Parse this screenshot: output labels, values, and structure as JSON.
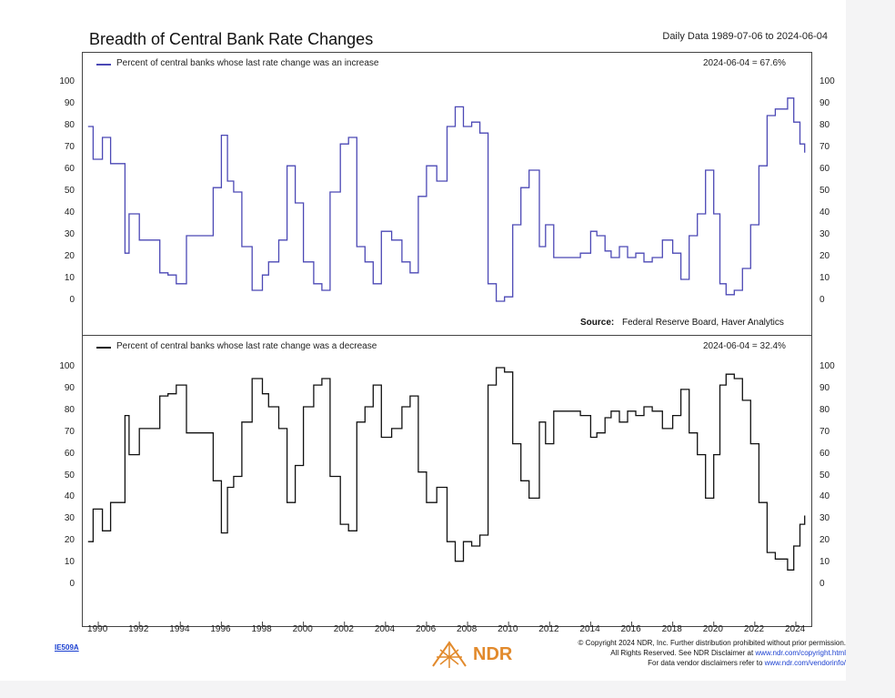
{
  "title": "Breadth of Central Bank Rate Changes",
  "date_range": "Daily Data 1989-07-06 to 2024-06-04",
  "source": {
    "label": "Source:",
    "text": "Federal Reserve Board, Haver Analytics"
  },
  "chart_code": "IE509A",
  "logo_text": "NDR",
  "footer": {
    "line1": "© Copyright 2024 NDR, Inc. Further distribution prohibited without prior permission.",
    "line2_pre": "All Rights Reserved. See NDR Disclaimer at ",
    "line2_link": "www.ndr.com/copyright.html",
    "line3_pre": "For data vendor disclaimers refer to ",
    "line3_link": "www.ndr.com/vendorinfo/"
  },
  "colors": {
    "increase": "#4b48b5",
    "decrease": "#111111",
    "logo": "#e28a2c"
  },
  "chart_data": [
    {
      "type": "line",
      "series": [
        {
          "name": "Percent of central banks whose last rate change was an increase",
          "x": [
            1989.5,
            1989.75,
            1990.2,
            1990.6,
            1991.0,
            1991.3,
            1991.5,
            1992.0,
            1992.5,
            1993.0,
            1993.4,
            1993.8,
            1994.3,
            1994.8,
            1995.2,
            1995.6,
            1996.0,
            1996.3,
            1996.6,
            1997.0,
            1997.5,
            1998.0,
            1998.3,
            1998.8,
            1999.2,
            1999.6,
            2000.0,
            2000.5,
            2000.9,
            2001.3,
            2001.8,
            2002.2,
            2002.6,
            2003.0,
            2003.4,
            2003.8,
            2004.3,
            2004.8,
            2005.2,
            2005.6,
            2006.0,
            2006.5,
            2007.0,
            2007.4,
            2007.8,
            2008.2,
            2008.6,
            2009.0,
            2009.4,
            2009.8,
            2010.2,
            2010.6,
            2011.0,
            2011.5,
            2011.8,
            2012.2,
            2012.6,
            2013.0,
            2013.5,
            2014.0,
            2014.3,
            2014.7,
            2015.0,
            2015.4,
            2015.8,
            2016.2,
            2016.6,
            2017.0,
            2017.5,
            2018.0,
            2018.4,
            2018.8,
            2019.2,
            2019.6,
            2020.0,
            2020.3,
            2020.6,
            2021.0,
            2021.4,
            2021.8,
            2022.2,
            2022.6,
            2023.0,
            2023.3,
            2023.6,
            2023.9,
            2024.2,
            2024.43
          ],
          "values": [
            80,
            65,
            75,
            63,
            63,
            22,
            40,
            28,
            28,
            13,
            12,
            8,
            30,
            30,
            30,
            52,
            76,
            55,
            50,
            25,
            5,
            12,
            18,
            28,
            62,
            45,
            18,
            8,
            5,
            50,
            72,
            75,
            25,
            18,
            8,
            32,
            28,
            18,
            13,
            48,
            62,
            55,
            80,
            89,
            80,
            82,
            77,
            8,
            0,
            2,
            35,
            52,
            60,
            25,
            35,
            20,
            20,
            20,
            22,
            32,
            30,
            23,
            20,
            25,
            20,
            22,
            18,
            20,
            28,
            22,
            10,
            30,
            40,
            60,
            40,
            8,
            3,
            5,
            15,
            35,
            62,
            85,
            88,
            88,
            93,
            82,
            72,
            68
          ]
        }
      ],
      "ylim": [
        -10,
        100
      ],
      "yticks": [
        0,
        10,
        20,
        30,
        40,
        50,
        60,
        70,
        80,
        90,
        100
      ],
      "latest": "2024-06-04 = 67.6%"
    },
    {
      "type": "line",
      "series": [
        {
          "name": "Percent of central banks whose last rate change was a decrease",
          "x": [
            1989.5,
            1989.75,
            1990.2,
            1990.6,
            1991.0,
            1991.3,
            1991.5,
            1992.0,
            1992.5,
            1993.0,
            1993.4,
            1993.8,
            1994.3,
            1994.8,
            1995.2,
            1995.6,
            1996.0,
            1996.3,
            1996.6,
            1997.0,
            1997.5,
            1998.0,
            1998.3,
            1998.8,
            1999.2,
            1999.6,
            2000.0,
            2000.5,
            2000.9,
            2001.3,
            2001.8,
            2002.2,
            2002.6,
            2003.0,
            2003.4,
            2003.8,
            2004.3,
            2004.8,
            2005.2,
            2005.6,
            2006.0,
            2006.5,
            2007.0,
            2007.4,
            2007.8,
            2008.2,
            2008.6,
            2009.0,
            2009.4,
            2009.8,
            2010.2,
            2010.6,
            2011.0,
            2011.5,
            2011.8,
            2012.2,
            2012.6,
            2013.0,
            2013.5,
            2014.0,
            2014.3,
            2014.7,
            2015.0,
            2015.4,
            2015.8,
            2016.2,
            2016.6,
            2017.0,
            2017.5,
            2018.0,
            2018.4,
            2018.8,
            2019.2,
            2019.6,
            2020.0,
            2020.3,
            2020.6,
            2021.0,
            2021.4,
            2021.8,
            2022.2,
            2022.6,
            2023.0,
            2023.3,
            2023.6,
            2023.9,
            2024.2,
            2024.43
          ],
          "values": [
            20,
            35,
            25,
            38,
            38,
            78,
            60,
            72,
            72,
            87,
            88,
            92,
            70,
            70,
            70,
            48,
            24,
            45,
            50,
            75,
            95,
            88,
            82,
            72,
            38,
            55,
            82,
            92,
            95,
            50,
            28,
            25,
            75,
            82,
            92,
            68,
            72,
            82,
            87,
            52,
            38,
            45,
            20,
            11,
            20,
            18,
            23,
            92,
            100,
            98,
            65,
            48,
            40,
            75,
            65,
            80,
            80,
            80,
            78,
            68,
            70,
            77,
            80,
            75,
            80,
            78,
            82,
            80,
            72,
            78,
            90,
            70,
            60,
            40,
            60,
            92,
            97,
            95,
            85,
            65,
            38,
            15,
            12,
            12,
            7,
            18,
            28,
            32
          ]
        }
      ],
      "ylim": [
        -10,
        100
      ],
      "yticks": [
        0,
        10,
        20,
        30,
        40,
        50,
        60,
        70,
        80,
        90,
        100
      ],
      "latest": "2024-06-04 = 32.4%"
    }
  ],
  "x_axis": {
    "ticks": [
      1990,
      1992,
      1994,
      1996,
      1998,
      2000,
      2002,
      2004,
      2006,
      2008,
      2010,
      2012,
      2014,
      2016,
      2018,
      2020,
      2022,
      2024
    ],
    "labels": [
      "1990",
      "1992",
      "1994",
      "1996",
      "1998",
      "2000",
      "2002",
      "2004",
      "2006",
      "2008",
      "2010",
      "2012",
      "2014",
      "2016",
      "2018",
      "2020",
      "2022",
      "2024"
    ],
    "range": [
      1989.2,
      2024.8
    ]
  }
}
